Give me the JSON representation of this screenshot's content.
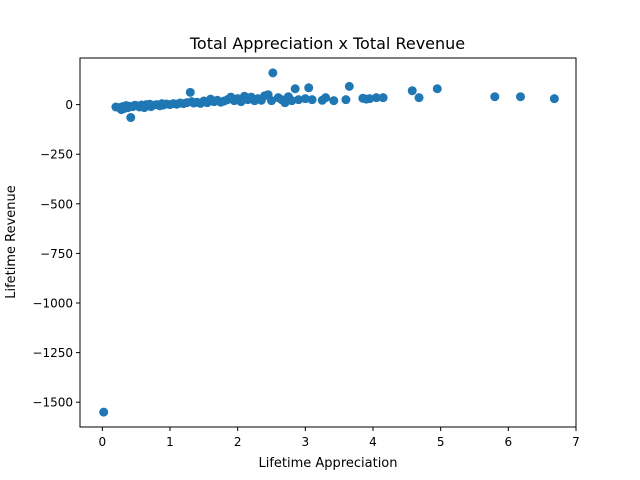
{
  "chart_data": {
    "type": "scatter",
    "title": "Total Appreciation x Total Revenue",
    "xlabel": "Lifetime Appreciation",
    "ylabel": "Lifetime Revenue",
    "xlim": [
      -0.33,
      7.0
    ],
    "ylim": [
      -1625,
      235
    ],
    "xticks": [
      0,
      1,
      2,
      3,
      4,
      5,
      6,
      7
    ],
    "xtick_labels": [
      "0",
      "1",
      "2",
      "3",
      "4",
      "5",
      "6",
      "7"
    ],
    "yticks": [
      0,
      -250,
      -500,
      -750,
      -1000,
      -1250,
      -1500
    ],
    "ytick_labels": [
      "0",
      "−250",
      "−500",
      "−750",
      "−1000",
      "−1250",
      "−1500"
    ],
    "grid": false,
    "marker_color": "#1f77b4",
    "series": [
      {
        "name": "",
        "points": [
          [
            0.02,
            -1550
          ],
          [
            0.2,
            -12
          ],
          [
            0.25,
            -15
          ],
          [
            0.28,
            -25
          ],
          [
            0.3,
            -10
          ],
          [
            0.32,
            -20
          ],
          [
            0.35,
            -5
          ],
          [
            0.38,
            -15
          ],
          [
            0.4,
            -8
          ],
          [
            0.42,
            -65
          ],
          [
            0.45,
            -10
          ],
          [
            0.48,
            -3
          ],
          [
            0.5,
            -5
          ],
          [
            0.55,
            -12
          ],
          [
            0.58,
            -2
          ],
          [
            0.6,
            -8
          ],
          [
            0.62,
            -15
          ],
          [
            0.65,
            0
          ],
          [
            0.68,
            -5
          ],
          [
            0.7,
            2
          ],
          [
            0.72,
            -10
          ],
          [
            0.75,
            -3
          ],
          [
            0.8,
            0
          ],
          [
            0.85,
            -6
          ],
          [
            0.88,
            5
          ],
          [
            0.9,
            -2
          ],
          [
            0.95,
            3
          ],
          [
            1.0,
            0
          ],
          [
            1.05,
            5
          ],
          [
            1.1,
            2
          ],
          [
            1.15,
            8
          ],
          [
            1.2,
            5
          ],
          [
            1.25,
            10
          ],
          [
            1.3,
            62
          ],
          [
            1.32,
            15
          ],
          [
            1.35,
            8
          ],
          [
            1.4,
            12
          ],
          [
            1.45,
            6
          ],
          [
            1.5,
            18
          ],
          [
            1.55,
            10
          ],
          [
            1.6,
            28
          ],
          [
            1.65,
            15
          ],
          [
            1.7,
            22
          ],
          [
            1.75,
            12
          ],
          [
            1.8,
            18
          ],
          [
            1.85,
            25
          ],
          [
            1.9,
            38
          ],
          [
            1.95,
            20
          ],
          [
            2.0,
            30
          ],
          [
            2.05,
            15
          ],
          [
            2.1,
            42
          ],
          [
            2.15,
            25
          ],
          [
            2.2,
            38
          ],
          [
            2.25,
            20
          ],
          [
            2.3,
            30
          ],
          [
            2.35,
            22
          ],
          [
            2.4,
            45
          ],
          [
            2.45,
            50
          ],
          [
            2.5,
            20
          ],
          [
            2.52,
            160
          ],
          [
            2.6,
            35
          ],
          [
            2.65,
            25
          ],
          [
            2.7,
            10
          ],
          [
            2.75,
            40
          ],
          [
            2.8,
            20
          ],
          [
            2.85,
            80
          ],
          [
            2.9,
            25
          ],
          [
            3.0,
            30
          ],
          [
            3.05,
            85
          ],
          [
            3.1,
            25
          ],
          [
            3.25,
            22
          ],
          [
            3.3,
            35
          ],
          [
            3.42,
            20
          ],
          [
            3.6,
            25
          ],
          [
            3.65,
            92
          ],
          [
            3.85,
            32
          ],
          [
            3.9,
            28
          ],
          [
            3.95,
            30
          ],
          [
            4.05,
            35
          ],
          [
            4.15,
            35
          ],
          [
            4.58,
            70
          ],
          [
            4.68,
            35
          ],
          [
            4.95,
            80
          ],
          [
            5.8,
            40
          ],
          [
            6.18,
            40
          ],
          [
            6.68,
            30
          ]
        ]
      }
    ]
  }
}
